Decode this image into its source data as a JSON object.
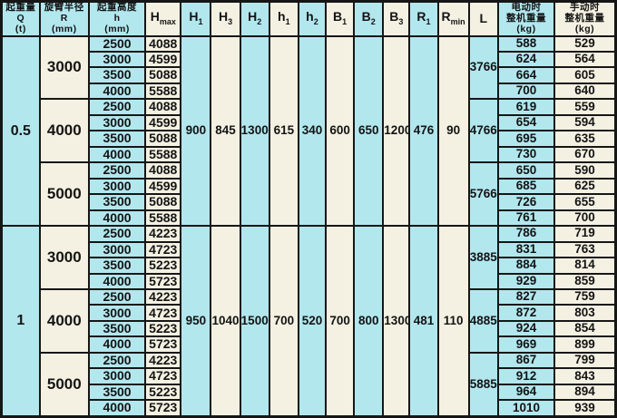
{
  "table": {
    "columns": [
      {
        "id": "q",
        "header_lines": [
          "起重量",
          "Q",
          "(t)"
        ]
      },
      {
        "id": "r",
        "header_lines": [
          "旋臂半径",
          "R",
          "(mm)"
        ]
      },
      {
        "id": "h",
        "header_lines": [
          "起重高度",
          "h",
          "(mm)"
        ]
      },
      {
        "id": "hmax",
        "base": "H",
        "sub": "max"
      },
      {
        "id": "h1-cap",
        "base": "H",
        "sub": "1"
      },
      {
        "id": "h3-cap",
        "base": "H",
        "sub": "3"
      },
      {
        "id": "h2-cap",
        "base": "H",
        "sub": "2"
      },
      {
        "id": "h1-low",
        "base": "h",
        "sub": "1"
      },
      {
        "id": "h2-low",
        "base": "h",
        "sub": "2"
      },
      {
        "id": "b1",
        "base": "B",
        "sub": "1"
      },
      {
        "id": "b2",
        "base": "B",
        "sub": "2"
      },
      {
        "id": "b3",
        "base": "B",
        "sub": "3"
      },
      {
        "id": "r1",
        "base": "R",
        "sub": "1"
      },
      {
        "id": "rmin",
        "base": "R",
        "sub": "min"
      },
      {
        "id": "l",
        "base": "L",
        "sub": ""
      },
      {
        "id": "electric-weight",
        "header_lines": [
          "电动时",
          "整机重量",
          "(kg)"
        ]
      },
      {
        "id": "manual-weight",
        "header_lines": [
          "手动时",
          "整机重量",
          "(kg)"
        ]
      }
    ],
    "mid_column_ids": [
      "h1-cap",
      "h3-cap",
      "h2-cap",
      "h1-low",
      "h2-low",
      "b1",
      "b2",
      "b3",
      "r1",
      "rmin"
    ],
    "sections": [
      {
        "q": "0.5",
        "mid_values": [
          "900",
          "845",
          "1300",
          "615",
          "340",
          "600",
          "650",
          "1200",
          "476",
          "90"
        ],
        "groups": [
          {
            "r": "3000",
            "l": "3766",
            "rows": [
              [
                "2500",
                "4088",
                "588",
                "529"
              ],
              [
                "3000",
                "4599",
                "624",
                "564"
              ],
              [
                "3500",
                "5088",
                "664",
                "605"
              ],
              [
                "4000",
                "5588",
                "700",
                "640"
              ]
            ]
          },
          {
            "r": "4000",
            "l": "4766",
            "rows": [
              [
                "2500",
                "4088",
                "619",
                "559"
              ],
              [
                "3000",
                "4599",
                "654",
                "594"
              ],
              [
                "3500",
                "5088",
                "695",
                "635"
              ],
              [
                "4000",
                "5588",
                "730",
                "670"
              ]
            ]
          },
          {
            "r": "5000",
            "l": "5766",
            "rows": [
              [
                "2500",
                "4088",
                "650",
                "590"
              ],
              [
                "3000",
                "4599",
                "685",
                "625"
              ],
              [
                "3500",
                "5088",
                "726",
                "655"
              ],
              [
                "4000",
                "5588",
                "761",
                "700"
              ]
            ]
          }
        ]
      },
      {
        "q": "1",
        "mid_values": [
          "950",
          "1040",
          "1500",
          "700",
          "520",
          "700",
          "800",
          "1300",
          "481",
          "110"
        ],
        "groups": [
          {
            "r": "3000",
            "l": "3885",
            "rows": [
              [
                "2500",
                "4223",
                "786",
                "719"
              ],
              [
                "3000",
                "4723",
                "831",
                "763"
              ],
              [
                "3500",
                "5223",
                "884",
                "814"
              ],
              [
                "4000",
                "5723",
                "929",
                "859"
              ]
            ]
          },
          {
            "r": "4000",
            "l": "4885",
            "rows": [
              [
                "2500",
                "4223",
                "827",
                "759"
              ],
              [
                "3000",
                "4723",
                "872",
                "803"
              ],
              [
                "3500",
                "5223",
                "924",
                "854"
              ],
              [
                "4000",
                "5723",
                "969",
                "899"
              ]
            ]
          },
          {
            "r": "5000",
            "l": "5885",
            "rows": [
              [
                "2500",
                "4223",
                "867",
                "799"
              ],
              [
                "3000",
                "4723",
                "912",
                "843"
              ],
              [
                "3500",
                "5223",
                "964",
                "894"
              ],
              [
                "4000",
                "5723",
                "1010",
                "939"
              ]
            ]
          }
        ]
      }
    ],
    "colors": {
      "cyan": "#b2e7ee",
      "cream": "#f4f1e2",
      "border": "#161616",
      "text": "#141414"
    }
  }
}
